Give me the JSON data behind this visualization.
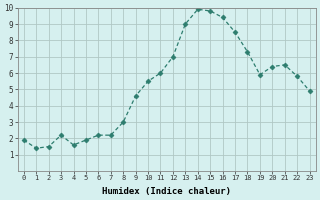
{
  "x": [
    0,
    1,
    2,
    3,
    4,
    5,
    6,
    7,
    8,
    9,
    10,
    11,
    12,
    13,
    14,
    15,
    16,
    17,
    18,
    19,
    20,
    21,
    22,
    23
  ],
  "y": [
    1.9,
    1.4,
    1.5,
    2.2,
    1.6,
    1.9,
    2.2,
    2.2,
    3.0,
    4.6,
    5.5,
    6.0,
    7.0,
    9.0,
    9.9,
    9.8,
    9.4,
    8.5,
    7.3,
    5.9,
    6.4,
    6.5,
    5.8,
    4.9
  ],
  "line_color": "#2d7d6e",
  "marker": "D",
  "marker_size": 2.5,
  "bg_color": "#d6f0ef",
  "grid_color": "#b0c8c5",
  "xlabel": "Humidex (Indice chaleur)",
  "ylim": [
    0,
    10
  ],
  "xlim_min": -0.5,
  "xlim_max": 23.5,
  "yticks": [
    1,
    2,
    3,
    4,
    5,
    6,
    7,
    8,
    9,
    10
  ],
  "xticks": [
    0,
    1,
    2,
    3,
    4,
    5,
    6,
    7,
    8,
    9,
    10,
    11,
    12,
    13,
    14,
    15,
    16,
    17,
    18,
    19,
    20,
    21,
    22,
    23
  ]
}
